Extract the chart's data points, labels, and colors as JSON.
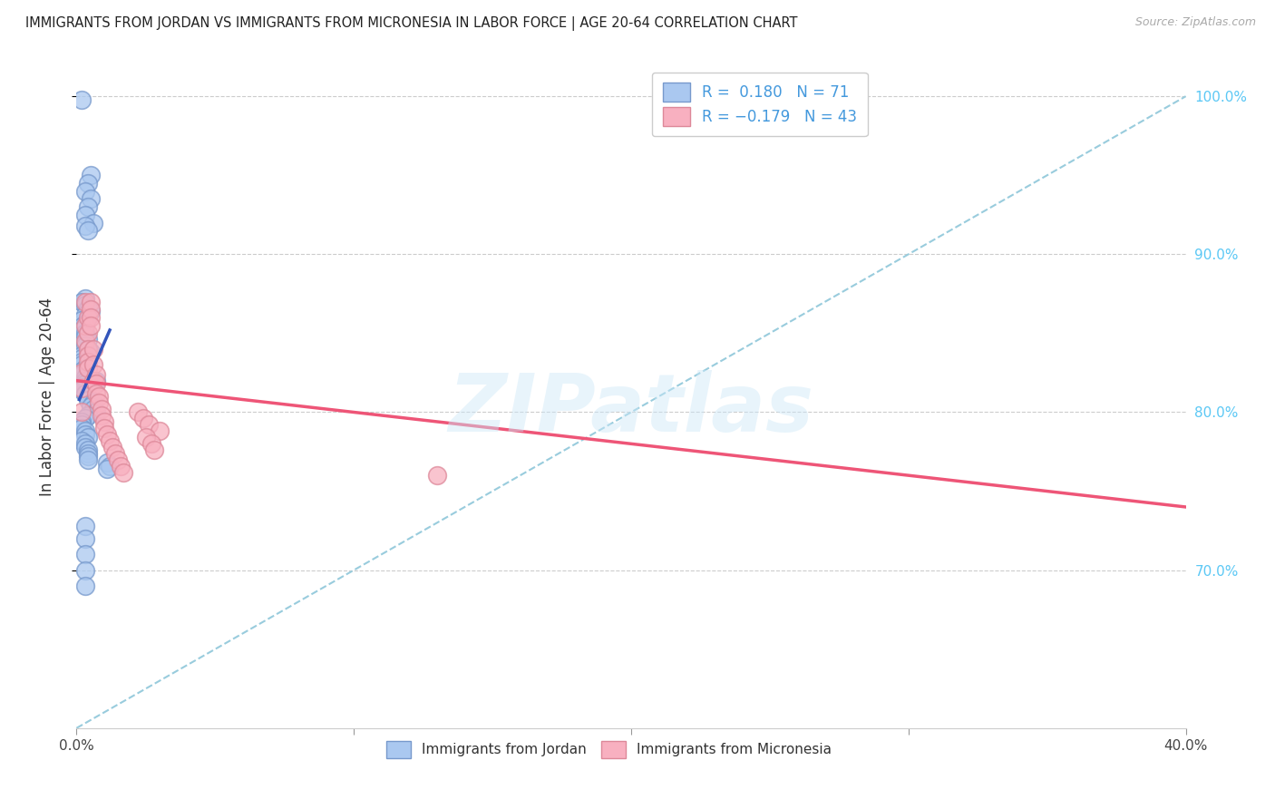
{
  "title": "IMMIGRANTS FROM JORDAN VS IMMIGRANTS FROM MICRONESIA IN LABOR FORCE | AGE 20-64 CORRELATION CHART",
  "source": "Source: ZipAtlas.com",
  "ylabel": "In Labor Force | Age 20-64",
  "xlim": [
    0.0,
    0.4
  ],
  "ylim": [
    0.6,
    1.02
  ],
  "xticks": [
    0.0,
    0.1,
    0.2,
    0.3,
    0.4
  ],
  "xticklabels": [
    "0.0%",
    "",
    "",
    "",
    "40.0%"
  ],
  "yticks": [
    0.7,
    0.8,
    0.9,
    1.0
  ],
  "yticklabels": [
    "70.0%",
    "80.0%",
    "90.0%",
    "100.0%"
  ],
  "right_ytick_color": "#5bc8f5",
  "jordan_color": "#aac8f0",
  "jordan_edge_color": "#7799cc",
  "micronesia_color": "#f8b0c0",
  "micronesia_edge_color": "#dd8899",
  "jordan_trend_color": "#3355bb",
  "micronesia_trend_color": "#ee5577",
  "ref_line_color": "#99ccdd",
  "legend_jordan_label": "Immigrants from Jordan",
  "legend_micronesia_label": "Immigrants from Micronesia",
  "watermark": "ZIPatlas",
  "background_color": "#ffffff",
  "grid_color": "#cccccc",
  "jordan_x": [
    0.002,
    0.005,
    0.004,
    0.003,
    0.005,
    0.004,
    0.003,
    0.006,
    0.003,
    0.004,
    0.003,
    0.002,
    0.003,
    0.004,
    0.005,
    0.003,
    0.004,
    0.002,
    0.003,
    0.002,
    0.002,
    0.003,
    0.003,
    0.004,
    0.003,
    0.003,
    0.004,
    0.005,
    0.002,
    0.002,
    0.002,
    0.002,
    0.003,
    0.002,
    0.002,
    0.003,
    0.003,
    0.003,
    0.002,
    0.002,
    0.003,
    0.004,
    0.004,
    0.006,
    0.005,
    0.007,
    0.006,
    0.007,
    0.004,
    0.003,
    0.002,
    0.002,
    0.002,
    0.003,
    0.003,
    0.004,
    0.002,
    0.003,
    0.003,
    0.004,
    0.004,
    0.004,
    0.004,
    0.011,
    0.012,
    0.011,
    0.003,
    0.003,
    0.003,
    0.003,
    0.003
  ],
  "jordan_y": [
    0.998,
    0.95,
    0.945,
    0.94,
    0.935,
    0.93,
    0.925,
    0.92,
    0.918,
    0.915,
    0.872,
    0.87,
    0.868,
    0.866,
    0.864,
    0.862,
    0.86,
    0.858,
    0.856,
    0.854,
    0.852,
    0.85,
    0.848,
    0.846,
    0.844,
    0.842,
    0.84,
    0.838,
    0.836,
    0.834,
    0.832,
    0.83,
    0.828,
    0.826,
    0.824,
    0.822,
    0.82,
    0.818,
    0.816,
    0.814,
    0.812,
    0.81,
    0.808,
    0.806,
    0.804,
    0.82,
    0.802,
    0.8,
    0.798,
    0.796,
    0.794,
    0.792,
    0.79,
    0.788,
    0.786,
    0.784,
    0.782,
    0.78,
    0.778,
    0.776,
    0.774,
    0.772,
    0.77,
    0.768,
    0.766,
    0.764,
    0.728,
    0.72,
    0.71,
    0.7,
    0.69
  ],
  "micronesia_x": [
    0.002,
    0.002,
    0.002,
    0.003,
    0.003,
    0.003,
    0.004,
    0.004,
    0.004,
    0.004,
    0.004,
    0.004,
    0.005,
    0.005,
    0.005,
    0.005,
    0.006,
    0.006,
    0.006,
    0.007,
    0.007,
    0.007,
    0.008,
    0.008,
    0.009,
    0.009,
    0.01,
    0.01,
    0.011,
    0.012,
    0.013,
    0.014,
    0.015,
    0.016,
    0.017,
    0.022,
    0.024,
    0.026,
    0.13,
    0.03,
    0.025,
    0.027,
    0.028
  ],
  "micronesia_y": [
    0.8,
    0.815,
    0.825,
    0.845,
    0.855,
    0.87,
    0.86,
    0.85,
    0.84,
    0.836,
    0.832,
    0.828,
    0.87,
    0.865,
    0.86,
    0.855,
    0.84,
    0.83,
    0.82,
    0.824,
    0.818,
    0.812,
    0.81,
    0.806,
    0.802,
    0.798,
    0.794,
    0.79,
    0.786,
    0.782,
    0.778,
    0.774,
    0.77,
    0.766,
    0.762,
    0.8,
    0.796,
    0.792,
    0.76,
    0.788,
    0.784,
    0.78,
    0.776
  ],
  "jordan_trend_x0": 0.001,
  "jordan_trend_x1": 0.012,
  "jordan_trend_y0": 0.808,
  "jordan_trend_y1": 0.852,
  "micronesia_trend_x0": 0.0,
  "micronesia_trend_x1": 0.4,
  "micronesia_trend_y0": 0.82,
  "micronesia_trend_y1": 0.74
}
